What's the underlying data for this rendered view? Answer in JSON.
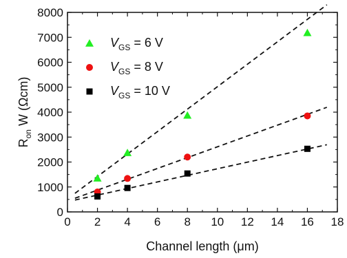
{
  "chart_data": {
    "type": "scatter",
    "xlabel": "Channel length (μm)",
    "ylabel": "R",
    "ylabel_sub": "on",
    "ylabel_rest": " W (Ωcm)",
    "xlim": [
      0,
      18
    ],
    "ylim": [
      0,
      8000
    ],
    "x_ticks": [
      0,
      2,
      4,
      6,
      8,
      10,
      12,
      14,
      16,
      18
    ],
    "y_ticks": [
      0,
      1000,
      2000,
      3000,
      4000,
      5000,
      6000,
      7000,
      8000
    ],
    "grid": false,
    "legend_position": "top-left",
    "series": [
      {
        "legend_prefix": "V",
        "legend_sub": "GS",
        "legend_suffix": " = 6 V",
        "marker": "triangle",
        "color": "#22ee22",
        "x": [
          2,
          4,
          8,
          16
        ],
        "y": [
          1350,
          2370,
          3870,
          7180
        ],
        "fit": {
          "intercept": 520,
          "slope": 450,
          "x_range": [
            0.5,
            17.3
          ]
        }
      },
      {
        "legend_prefix": "V",
        "legend_sub": "GS",
        "legend_suffix": " = 8 V",
        "marker": "circle",
        "color": "#ee1111",
        "x": [
          2,
          4,
          8,
          16
        ],
        "y": [
          800,
          1340,
          2200,
          3850
        ],
        "fit": {
          "intercept": 440,
          "slope": 217,
          "x_range": [
            0.5,
            17.3
          ]
        }
      },
      {
        "legend_prefix": "V",
        "legend_sub": "GS",
        "legend_suffix": " = 10 V",
        "marker": "square",
        "color": "#000000",
        "x": [
          2,
          4,
          8,
          16
        ],
        "y": [
          620,
          960,
          1540,
          2530
        ],
        "fit": {
          "intercept": 410,
          "slope": 132,
          "x_range": [
            0.5,
            17.3
          ]
        }
      }
    ]
  }
}
